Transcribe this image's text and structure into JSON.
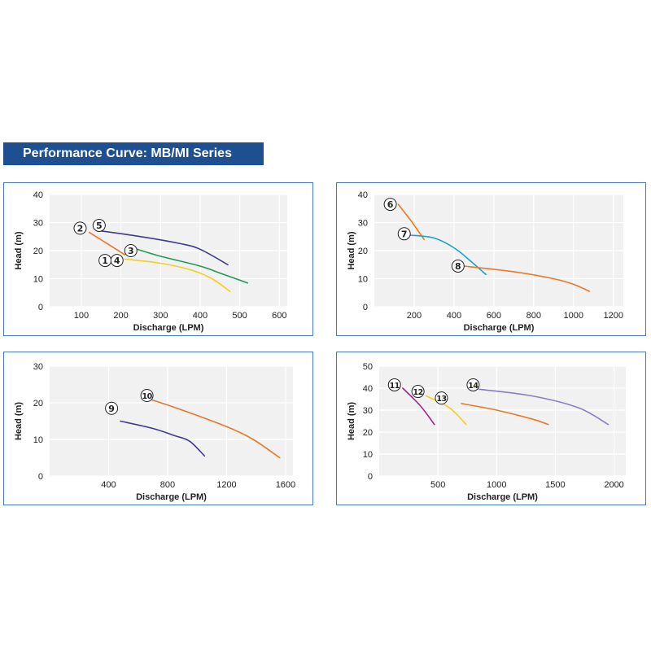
{
  "title": "Performance Curve: MB/MI Series",
  "chart_data": [
    {
      "type": "line",
      "xlabel": "Discharge (LPM)",
      "ylabel": "Head (m)",
      "xlim": [
        20,
        620
      ],
      "ylim": [
        0,
        40
      ],
      "xticks": [
        100,
        200,
        300,
        400,
        500,
        600
      ],
      "yticks": [
        0,
        10,
        20,
        30,
        40
      ],
      "series": [
        {
          "name": "5",
          "color": "#3f3b8f",
          "x": [
            150,
            250,
            350,
            400,
            470
          ],
          "y": [
            27,
            25,
            22.5,
            20.5,
            15
          ]
        },
        {
          "name": "2",
          "color": "#e8782a",
          "x": [
            120,
            160,
            210
          ],
          "y": [
            26.5,
            23,
            18.5
          ]
        },
        {
          "name": "3",
          "color": "#1f9b57",
          "x": [
            230,
            300,
            400,
            450,
            520
          ],
          "y": [
            21,
            18,
            14.5,
            12,
            8.5
          ]
        },
        {
          "name": "1 4",
          "color": "#f2cf23",
          "x": [
            210,
            300,
            380,
            430,
            475
          ],
          "y": [
            17,
            15.5,
            13,
            10,
            5.5
          ]
        }
      ],
      "markers": [
        {
          "label": "2",
          "x": 97,
          "y": 28
        },
        {
          "label": "5",
          "x": 145,
          "y": 29
        },
        {
          "label": "3",
          "x": 225,
          "y": 20
        },
        {
          "label": "1",
          "x": 160,
          "y": 16.5
        },
        {
          "label": "4",
          "x": 190,
          "y": 16.5
        }
      ]
    },
    {
      "type": "line",
      "xlabel": "Discharge (LPM)",
      "ylabel": "Head (m)",
      "xlim": [
        0,
        1250
      ],
      "ylim": [
        0,
        40
      ],
      "xticks": [
        200,
        400,
        600,
        800,
        1000,
        1200
      ],
      "yticks": [
        0,
        10,
        20,
        30,
        40
      ],
      "series": [
        {
          "name": "6",
          "color": "#e8782a",
          "x": [
            120,
            180,
            250
          ],
          "y": [
            36.5,
            31,
            24
          ]
        },
        {
          "name": "7",
          "color": "#1aa3c2",
          "x": [
            180,
            300,
            400,
            480,
            560
          ],
          "y": [
            25.5,
            24.5,
            21,
            16.5,
            11.5
          ]
        },
        {
          "name": "8",
          "color": "#e8782a",
          "x": [
            450,
            700,
            900,
            1000,
            1080
          ],
          "y": [
            14.5,
            12.5,
            10,
            8,
            5.5
          ]
        }
      ],
      "markers": [
        {
          "label": "6",
          "x": 80,
          "y": 36.5
        },
        {
          "label": "7",
          "x": 150,
          "y": 26
        },
        {
          "label": "8",
          "x": 420,
          "y": 14.5
        }
      ]
    },
    {
      "type": "line",
      "xlabel": "Discharge (LPM)",
      "ylabel": "Head (m)",
      "xlim": [
        0,
        1650
      ],
      "ylim": [
        0,
        30
      ],
      "xticks": [
        400,
        800,
        1200,
        1600
      ],
      "yticks": [
        0,
        10,
        20,
        30
      ],
      "series": [
        {
          "name": "9",
          "color": "#3f3b8f",
          "x": [
            480,
            700,
            850,
            950,
            1050
          ],
          "y": [
            15,
            13,
            11,
            9.5,
            5.5
          ]
        },
        {
          "name": "10",
          "color": "#e8782a",
          "x": [
            680,
            900,
            1200,
            1380,
            1560
          ],
          "y": [
            21,
            18,
            13.5,
            10,
            5
          ]
        }
      ],
      "markers": [
        {
          "label": "9",
          "x": 420,
          "y": 18.5
        },
        {
          "label": "10",
          "x": 660,
          "y": 22
        }
      ]
    },
    {
      "type": "line",
      "xlabel": "Discharge (LPM)",
      "ylabel": "Head (m)",
      "xlim": [
        0,
        2100
      ],
      "ylim": [
        0,
        50
      ],
      "xticks": [
        500,
        1000,
        1500,
        2000
      ],
      "yticks": [
        0,
        10,
        20,
        30,
        40,
        50
      ],
      "series": [
        {
          "name": "11",
          "color": "#9b2a8a",
          "x": [
            200,
            350,
            470
          ],
          "y": [
            40,
            32,
            23.5
          ]
        },
        {
          "name": "12",
          "color": "#f2cf23",
          "x": [
            400,
            600,
            740
          ],
          "y": [
            36.5,
            31,
            23.5
          ]
        },
        {
          "name": "13",
          "color": "#e8782a",
          "x": [
            700,
            1000,
            1300,
            1440
          ],
          "y": [
            33,
            30,
            26,
            23.5
          ]
        },
        {
          "name": "14",
          "color": "#8d7cc0",
          "x": [
            850,
            1300,
            1700,
            1950
          ],
          "y": [
            39.5,
            36.5,
            31,
            23.5
          ]
        }
      ],
      "markers": [
        {
          "label": "11",
          "x": 130,
          "y": 41.5
        },
        {
          "label": "12",
          "x": 330,
          "y": 38.5
        },
        {
          "label": "13",
          "x": 530,
          "y": 35.5
        },
        {
          "label": "14",
          "x": 800,
          "y": 41.5
        }
      ]
    }
  ]
}
